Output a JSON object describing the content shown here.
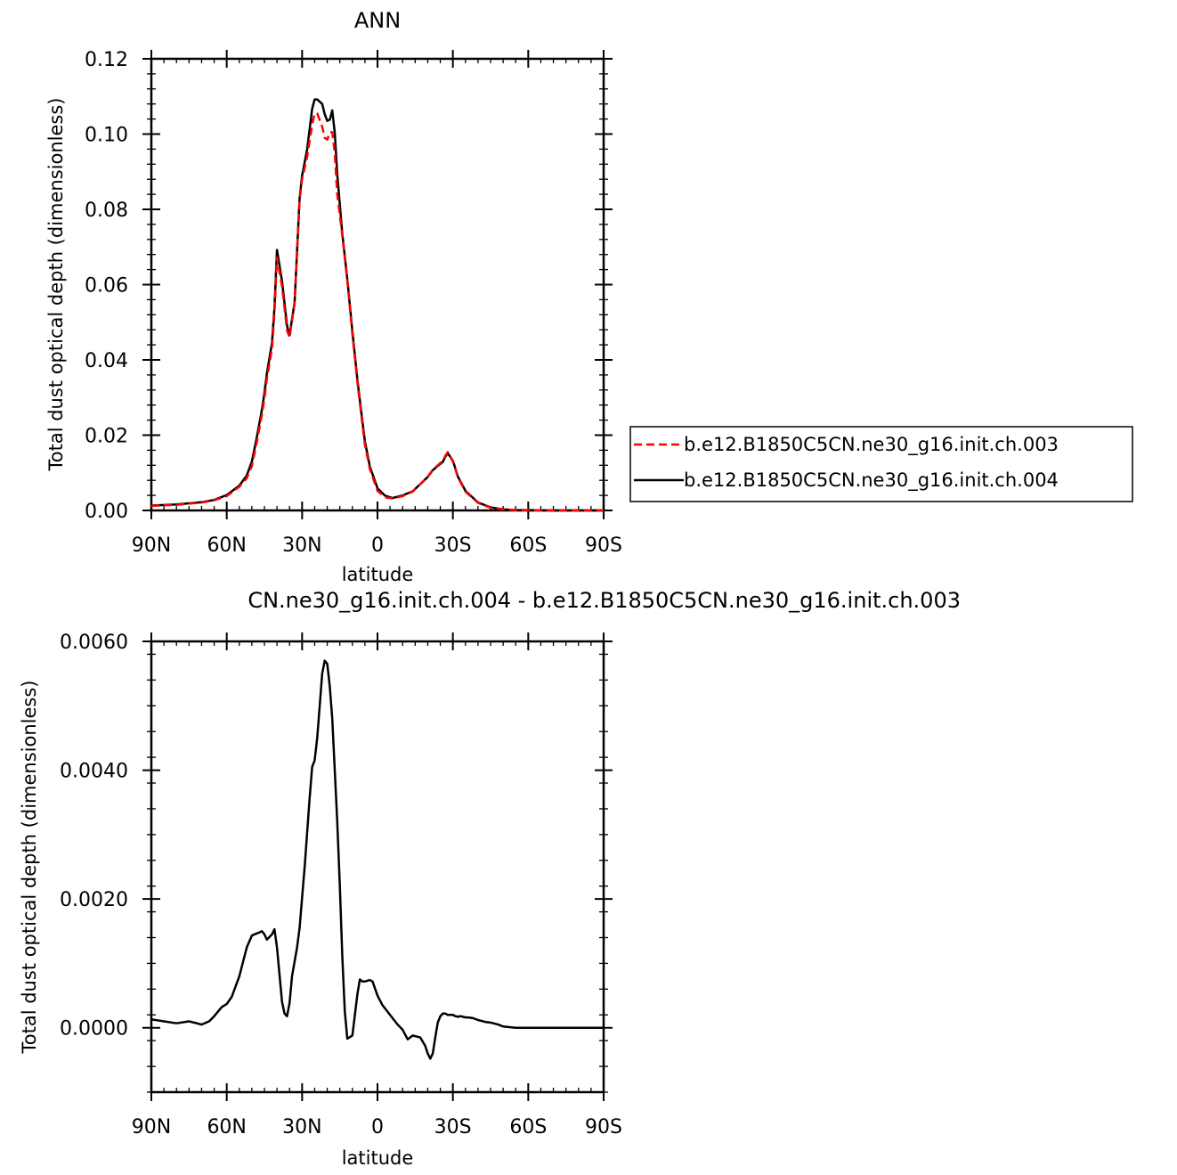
{
  "chart_data": [
    {
      "type": "line",
      "title": "ANN",
      "xlabel": "latitude",
      "ylabel": "Total dust optical depth (dimensionless)",
      "xlim": [
        90,
        -90
      ],
      "ylim": [
        0,
        0.12
      ],
      "xticks": [
        90,
        60,
        30,
        0,
        -30,
        -60,
        -90
      ],
      "xtick_labels": [
        "90N",
        "60N",
        "30N",
        "0",
        "30S",
        "60S",
        "90S"
      ],
      "yticks": [
        0,
        0.02,
        0.04,
        0.06,
        0.08,
        0.1,
        0.12
      ],
      "ytick_labels": [
        "0.00",
        "0.02",
        "0.04",
        "0.06",
        "0.08",
        "0.10",
        "0.12"
      ],
      "legend_position": "right",
      "series": [
        {
          "name": "b.e12.B1850C5CN.ne30_g16.init.ch.003",
          "color": "#ff0000",
          "dash": "dashed",
          "x": [
            90,
            80,
            70,
            65,
            60,
            55,
            52,
            50,
            48,
            46,
            45,
            44,
            42,
            41,
            40,
            38,
            36,
            35,
            33,
            31,
            30,
            28,
            26,
            25,
            24,
            22,
            21,
            20,
            19,
            18,
            17,
            16,
            14,
            12,
            10,
            8,
            6,
            5,
            3,
            0,
            -3,
            -6,
            -10,
            -14,
            -18,
            -20,
            -22,
            -24,
            -26,
            -27,
            -28,
            -30,
            -32,
            -35,
            -40,
            -45,
            -50,
            -55,
            -60,
            -70,
            -80,
            -90
          ],
          "y": [
            0.0012,
            0.0015,
            0.0021,
            0.0027,
            0.0038,
            0.0063,
            0.0086,
            0.0118,
            0.0182,
            0.0255,
            0.0298,
            0.035,
            0.043,
            0.0525,
            0.0672,
            0.0595,
            0.0478,
            0.046,
            0.055,
            0.0825,
            0.088,
            0.094,
            0.1025,
            0.1055,
            0.1055,
            0.102,
            0.099,
            0.0985,
            0.1005,
            0.1005,
            0.095,
            0.084,
            0.073,
            0.061,
            0.0468,
            0.0341,
            0.0228,
            0.0174,
            0.0109,
            0.0052,
            0.0035,
            0.0032,
            0.0038,
            0.005,
            0.0076,
            0.009,
            0.0108,
            0.012,
            0.0132,
            0.0145,
            0.0155,
            0.013,
            0.0088,
            0.005,
            0.002,
            0.0007,
            0.0003,
            0.0001,
            0.0001,
            0.0,
            0.0,
            0.0
          ]
        },
        {
          "name": "b.e12.B1850C5CN.ne30_g16.init.ch.004",
          "color": "#000000",
          "dash": "solid",
          "x": [
            90,
            80,
            70,
            65,
            60,
            55,
            52,
            50,
            48,
            46,
            45,
            44,
            42,
            41,
            40,
            38,
            36,
            35,
            33,
            31,
            30,
            28,
            26,
            25,
            24,
            22,
            21,
            20,
            19,
            18,
            17,
            16,
            14,
            12,
            10,
            8,
            6,
            5,
            3,
            0,
            -3,
            -6,
            -10,
            -14,
            -18,
            -20,
            -22,
            -24,
            -26,
            -27,
            -28,
            -30,
            -32,
            -35,
            -40,
            -45,
            -50,
            -55,
            -60,
            -70,
            -80,
            -90
          ],
          "y": [
            0.0013,
            0.0016,
            0.0022,
            0.0028,
            0.0041,
            0.0066,
            0.0093,
            0.013,
            0.0195,
            0.0268,
            0.0312,
            0.0365,
            0.0445,
            0.054,
            0.0692,
            0.0609,
            0.0491,
            0.0465,
            0.0553,
            0.0829,
            0.0889,
            0.096,
            0.1067,
            0.1092,
            0.1092,
            0.108,
            0.1053,
            0.1035,
            0.1038,
            0.1063,
            0.1004,
            0.0893,
            0.0735,
            0.0615,
            0.0476,
            0.0348,
            0.0236,
            0.0183,
            0.0116,
            0.0059,
            0.0039,
            0.0033,
            0.004,
            0.0051,
            0.0076,
            0.0089,
            0.0107,
            0.0118,
            0.0129,
            0.0143,
            0.0152,
            0.0132,
            0.009,
            0.0052,
            0.0021,
            0.0008,
            0.0003,
            0.0001,
            0.0001,
            0.0,
            0.0,
            0.0
          ]
        }
      ]
    },
    {
      "type": "line",
      "title": "CN.ne30_g16.init.ch.004 - b.e12.B1850C5CN.ne30_g16.init.ch.003",
      "xlabel": "latitude",
      "ylabel": "Total dust optical depth (dimensionless)",
      "xlim": [
        90,
        -90
      ],
      "ylim": [
        -0.001,
        0.006
      ],
      "xticks": [
        90,
        60,
        30,
        0,
        -30,
        -60,
        -90
      ],
      "xtick_labels": [
        "90N",
        "60N",
        "30N",
        "0",
        "30S",
        "60S",
        "90S"
      ],
      "yticks": [
        0,
        0.002,
        0.004,
        0.006
      ],
      "ytick_labels": [
        "0.0000",
        "0.0020",
        "0.0040",
        "0.0060"
      ],
      "series": [
        {
          "color": "#000000",
          "dash": "solid",
          "x": [
            90,
            85,
            80,
            75,
            70,
            67,
            65,
            62,
            60,
            58,
            55,
            52,
            50,
            49,
            47,
            46,
            45,
            44,
            42,
            41,
            40,
            38,
            37,
            36,
            35,
            34,
            32,
            31,
            29,
            27,
            26,
            25,
            24,
            23,
            22,
            21,
            20,
            19,
            18,
            17,
            16,
            15,
            14,
            13,
            12,
            10,
            9,
            8,
            7,
            6,
            5,
            4,
            3,
            2,
            0,
            -2,
            -4,
            -6,
            -8,
            -10,
            -12,
            -13,
            -14,
            -15,
            -17,
            -19,
            -20,
            -21,
            -22,
            -23,
            -24,
            -25,
            -26,
            -27,
            -28,
            -29,
            -30,
            -31,
            -32,
            -33,
            -34,
            -35,
            -36,
            -38,
            -40,
            -43,
            -45,
            -48,
            -50,
            -55,
            -60,
            -70,
            -80,
            -90
          ],
          "y": [
            0.00013,
            0.0001,
            7e-05,
            0.0001,
            5e-05,
            0.0001,
            0.00018,
            0.00032,
            0.00037,
            0.00048,
            0.0008,
            0.00125,
            0.00143,
            0.00145,
            0.00148,
            0.0015,
            0.00145,
            0.00137,
            0.00145,
            0.00153,
            0.00125,
            0.0004,
            0.00022,
            0.00018,
            0.00038,
            0.0008,
            0.00125,
            0.00155,
            0.0025,
            0.00357,
            0.00405,
            0.00415,
            0.0045,
            0.005,
            0.0055,
            0.0057,
            0.00565,
            0.0053,
            0.0048,
            0.004,
            0.0032,
            0.0022,
            0.0011,
            0.00025,
            -0.00017,
            -0.00012,
            0.0002,
            0.00052,
            0.00075,
            0.00072,
            0.00072,
            0.00073,
            0.00074,
            0.00072,
            0.0005,
            0.00035,
            0.00025,
            0.00015,
            5e-05,
            -3e-05,
            -0.00018,
            -0.00015,
            -0.00012,
            -0.00013,
            -0.00015,
            -0.00028,
            -0.0004,
            -0.00048,
            -0.0004,
            -0.00015,
            8e-05,
            0.00018,
            0.00022,
            0.00022,
            0.0002,
            0.0002,
            0.0002,
            0.00018,
            0.00017,
            0.00018,
            0.00017,
            0.00016,
            0.00016,
            0.00015,
            0.00012,
            9e-05,
            8e-05,
            5e-05,
            2e-05,
            0.0,
            0.0,
            0.0,
            0.0,
            0.0
          ]
        }
      ]
    }
  ]
}
